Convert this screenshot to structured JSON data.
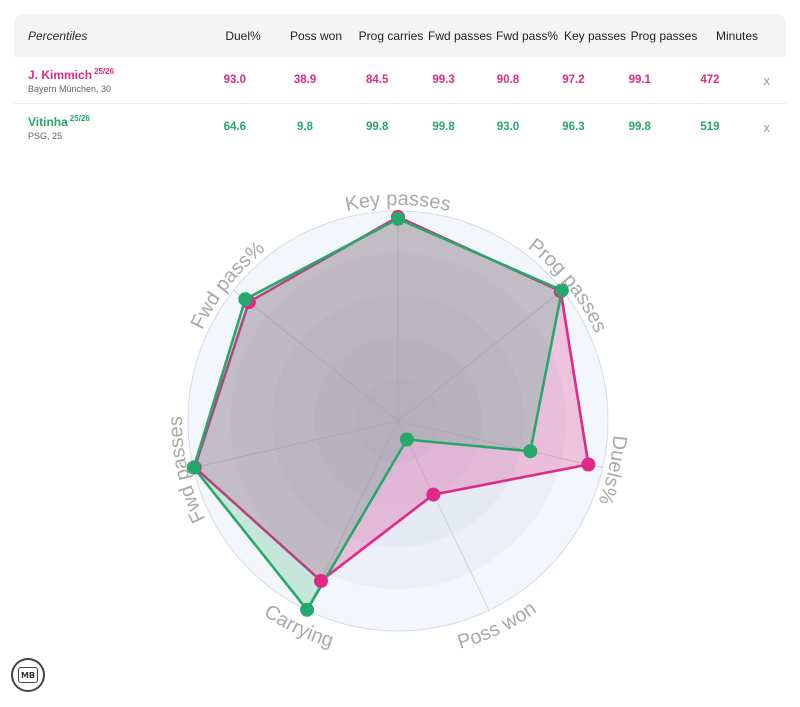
{
  "table": {
    "header": {
      "name": "Percentiles",
      "columns": [
        "Duel%",
        "Poss won",
        "Prog carries",
        "Fwd passes",
        "Fwd pass%",
        "Key passes",
        "Prog passes"
      ],
      "minutes": "Minutes"
    },
    "players": [
      {
        "name": "J. Kimmich",
        "season": "25/26",
        "club": "Bayern München, 30",
        "values": [
          "93.0",
          "38.9",
          "84.5",
          "99.3",
          "90.8",
          "97.2",
          "99.1"
        ],
        "minutes": "472",
        "remove": "x",
        "color": "#de2a86"
      },
      {
        "name": "Vitinha",
        "season": "25/26",
        "club": "PSG, 25",
        "values": [
          "64.6",
          "9.8",
          "99.8",
          "99.8",
          "93.0",
          "96.3",
          "99.8"
        ],
        "minutes": "519",
        "remove": "x",
        "color": "#27a86a"
      }
    ]
  },
  "chart_data": {
    "type": "radar",
    "axes": [
      "Key passes",
      "Prog passes",
      "Duels%",
      "Poss won",
      "Carrying",
      "Fwd passes",
      "Fwd pass%"
    ],
    "range": [
      0,
      100
    ],
    "series": [
      {
        "name": "J. Kimmich",
        "color": "#de2a86",
        "values": [
          97.2,
          99.1,
          93.0,
          38.9,
          84.5,
          99.3,
          90.8
        ]
      },
      {
        "name": "Vitinha",
        "color": "#27a86a",
        "values": [
          96.3,
          99.8,
          64.6,
          9.8,
          99.8,
          99.8,
          93.0
        ]
      }
    ]
  },
  "logo": {
    "text": "MB"
  }
}
